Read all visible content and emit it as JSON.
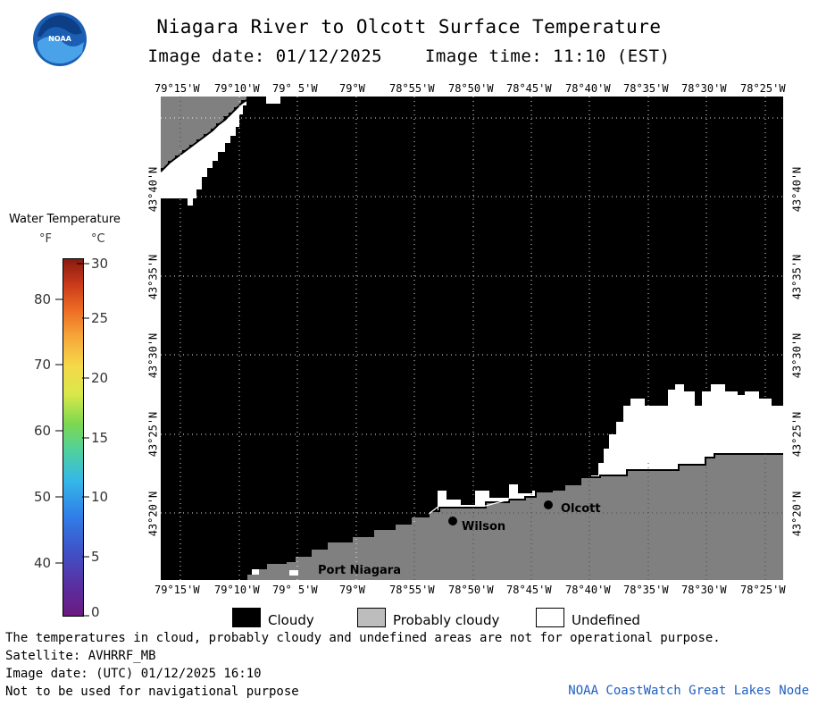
{
  "header": {
    "title": "Niagara River to Olcott Surface Temperature",
    "image_date": "Image date: 01/12/2025",
    "image_time": "Image time: 11:10 (EST)"
  },
  "logo": {
    "text": "NOAA"
  },
  "longitude_labels": [
    "79°15'W",
    "79°10'W",
    "79° 5'W",
    "79°W",
    "78°55'W",
    "78°50'W",
    "78°45'W",
    "78°40'W",
    "78°35'W",
    "78°30'W",
    "78°25'W"
  ],
  "latitude_labels": [
    "43°40'N",
    "43°35'N",
    "43°30'N",
    "43°25'N",
    "43°20'N"
  ],
  "places": [
    {
      "name": "Wilson"
    },
    {
      "name": "Olcott"
    },
    {
      "name": "Port Niagara"
    }
  ],
  "legend": {
    "title": "Water Temperature",
    "unit_f": "°F",
    "unit_c": "°C",
    "fahrenheit_ticks": [
      "80",
      "70",
      "60",
      "50",
      "40"
    ],
    "celsius_ticks": [
      "30",
      "25",
      "20",
      "15",
      "10",
      "5",
      "0"
    ]
  },
  "key": {
    "cloudy": "Cloudy",
    "probably_cloudy": "Probably cloudy",
    "undefined": "Undefined",
    "cloudy_color": "#000000",
    "probably_cloudy_color": "#bdbdbd",
    "undefined_color": "#ffffff",
    "land_color": "#808080"
  },
  "footer": {
    "disclaimer": "The temperatures in cloud, probably cloudy and undefined areas are not for operational purpose.",
    "satellite": "Satellite: AVHRRF_MB",
    "utc_date": "Image date: (UTC) 01/12/2025  16:10",
    "navigation": "Not to be used for navigational purpose",
    "credit": "NOAA CoastWatch Great Lakes Node"
  }
}
